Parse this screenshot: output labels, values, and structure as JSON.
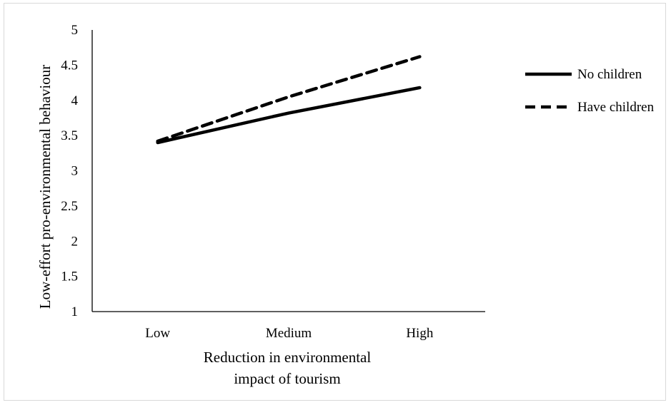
{
  "chart_data": {
    "type": "line",
    "title": "",
    "categories": [
      "Low",
      "Medium",
      "High"
    ],
    "xlabel_lines": [
      "Reduction in environmental",
      "impact of tourism"
    ],
    "ylabel": "Low-effort pro-environmental behaviour",
    "ylim": [
      1,
      5
    ],
    "yticks": [
      "1",
      "1.5",
      "2",
      "2.5",
      "3",
      "3.5",
      "4",
      "4.5",
      "5"
    ],
    "grid": false,
    "legend_position": "right",
    "series": [
      {
        "name": "No children",
        "values": [
          3.4,
          3.82,
          4.18
        ],
        "dash": "solid",
        "color": "#000000"
      },
      {
        "name": "Have children",
        "values": [
          3.42,
          4.05,
          4.62
        ],
        "dash": "dashed",
        "color": "#000000"
      }
    ]
  }
}
